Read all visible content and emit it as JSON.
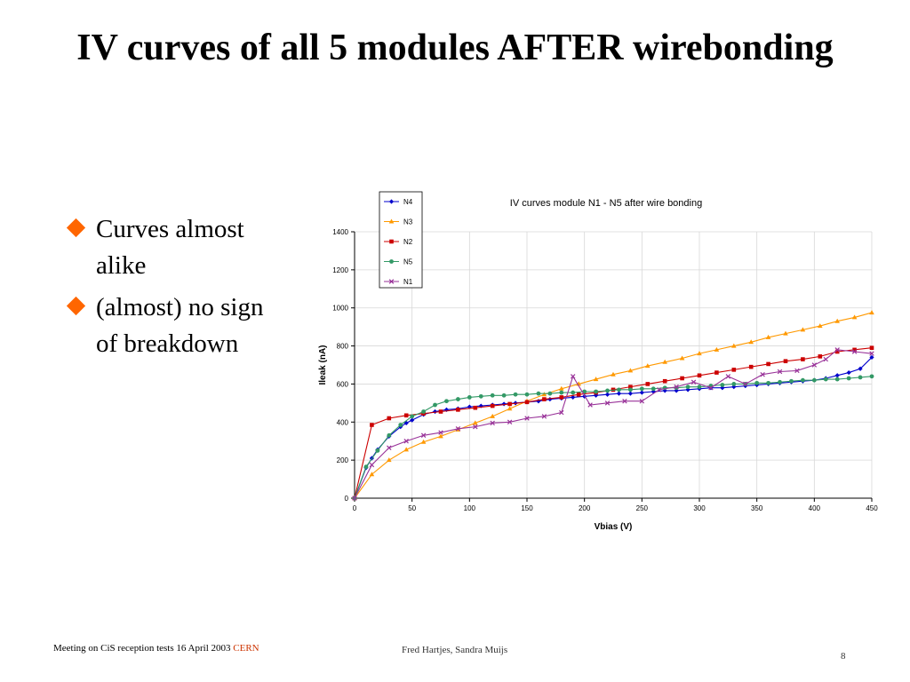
{
  "slide": {
    "title": "IV curves of all 5 modules AFTER wirebonding",
    "bullets": [
      "Curves almost alike",
      "(almost) no sign of breakdown"
    ],
    "bullet_color": "#ff6600"
  },
  "footer": {
    "meeting": "Meeting on CiS reception tests 16 April 2003",
    "org": "CERN",
    "authors": "Fred Hartjes, Sandra Muijs",
    "page": "8"
  },
  "chart_data": {
    "type": "line",
    "title": "IV curves module N1 - N5 after wire bonding",
    "xlabel": "Vbias (V)",
    "ylabel": "Ileak (nA)",
    "xlim": [
      0,
      450
    ],
    "ylim": [
      0,
      1400
    ],
    "xticks": [
      0,
      50,
      100,
      150,
      200,
      250,
      300,
      350,
      400,
      450
    ],
    "yticks": [
      0,
      200,
      400,
      600,
      800,
      1000,
      1200,
      1400
    ],
    "grid": true,
    "legend_position": "top-left",
    "series": [
      {
        "name": "N4",
        "color": "#0000cc",
        "marker": "diamond",
        "x": [
          0,
          10,
          15,
          20,
          30,
          40,
          45,
          50,
          60,
          70,
          80,
          90,
          100,
          110,
          120,
          130,
          140,
          150,
          160,
          170,
          180,
          190,
          200,
          210,
          220,
          230,
          240,
          250,
          260,
          270,
          280,
          290,
          300,
          310,
          320,
          330,
          340,
          350,
          360,
          370,
          380,
          390,
          400,
          410,
          420,
          430,
          440,
          450
        ],
        "y": [
          0,
          160,
          210,
          255,
          325,
          375,
          395,
          410,
          440,
          455,
          465,
          470,
          480,
          485,
          490,
          495,
          500,
          505,
          510,
          520,
          525,
          530,
          535,
          540,
          545,
          550,
          550,
          555,
          560,
          565,
          565,
          570,
          575,
          580,
          580,
          585,
          590,
          595,
          600,
          605,
          610,
          615,
          620,
          630,
          645,
          660,
          680,
          740
        ]
      },
      {
        "name": "N3",
        "color": "#ff9900",
        "marker": "triangle",
        "x": [
          0,
          15,
          30,
          45,
          60,
          75,
          90,
          105,
          120,
          135,
          150,
          165,
          180,
          195,
          210,
          225,
          240,
          255,
          270,
          285,
          300,
          315,
          330,
          345,
          360,
          375,
          390,
          405,
          420,
          435,
          450
        ],
        "y": [
          0,
          125,
          200,
          255,
          295,
          325,
          360,
          395,
          430,
          470,
          510,
          545,
          575,
          600,
          625,
          650,
          670,
          695,
          715,
          735,
          760,
          780,
          800,
          820,
          845,
          865,
          885,
          905,
          930,
          950,
          975
        ]
      },
      {
        "name": "N2",
        "color": "#cc0000",
        "marker": "square",
        "x": [
          0,
          15,
          30,
          45,
          60,
          75,
          90,
          105,
          120,
          135,
          150,
          165,
          180,
          195,
          210,
          225,
          240,
          255,
          270,
          285,
          300,
          315,
          330,
          345,
          360,
          375,
          390,
          405,
          420,
          435,
          450
        ],
        "y": [
          0,
          385,
          420,
          435,
          445,
          455,
          465,
          475,
          485,
          495,
          505,
          520,
          530,
          545,
          555,
          570,
          585,
          600,
          615,
          630,
          645,
          660,
          675,
          690,
          705,
          720,
          730,
          745,
          770,
          780,
          790
        ]
      },
      {
        "name": "N5",
        "color": "#339966",
        "marker": "circle",
        "x": [
          0,
          10,
          20,
          30,
          40,
          50,
          60,
          70,
          80,
          90,
          100,
          110,
          120,
          130,
          140,
          150,
          160,
          170,
          180,
          190,
          200,
          210,
          220,
          230,
          240,
          250,
          260,
          270,
          280,
          290,
          300,
          310,
          320,
          330,
          340,
          350,
          360,
          370,
          380,
          390,
          400,
          410,
          420,
          430,
          440,
          450
        ],
        "y": [
          0,
          165,
          250,
          330,
          385,
          430,
          455,
          490,
          510,
          520,
          530,
          535,
          540,
          540,
          545,
          545,
          550,
          550,
          555,
          555,
          560,
          560,
          565,
          570,
          570,
          575,
          575,
          580,
          580,
          585,
          585,
          590,
          595,
          600,
          600,
          605,
          605,
          610,
          615,
          620,
          620,
          625,
          625,
          630,
          635,
          640
        ]
      },
      {
        "name": "N1",
        "color": "#993399",
        "marker": "x",
        "x": [
          0,
          15,
          30,
          45,
          60,
          75,
          90,
          105,
          120,
          135,
          150,
          165,
          180,
          190,
          205,
          220,
          235,
          250,
          265,
          280,
          295,
          310,
          325,
          340,
          355,
          370,
          385,
          400,
          410,
          420,
          435,
          450
        ],
        "y": [
          0,
          175,
          265,
          300,
          330,
          345,
          365,
          375,
          395,
          400,
          420,
          430,
          450,
          640,
          490,
          500,
          510,
          510,
          570,
          585,
          610,
          580,
          640,
          600,
          650,
          665,
          670,
          700,
          730,
          780,
          770,
          760
        ]
      }
    ]
  }
}
